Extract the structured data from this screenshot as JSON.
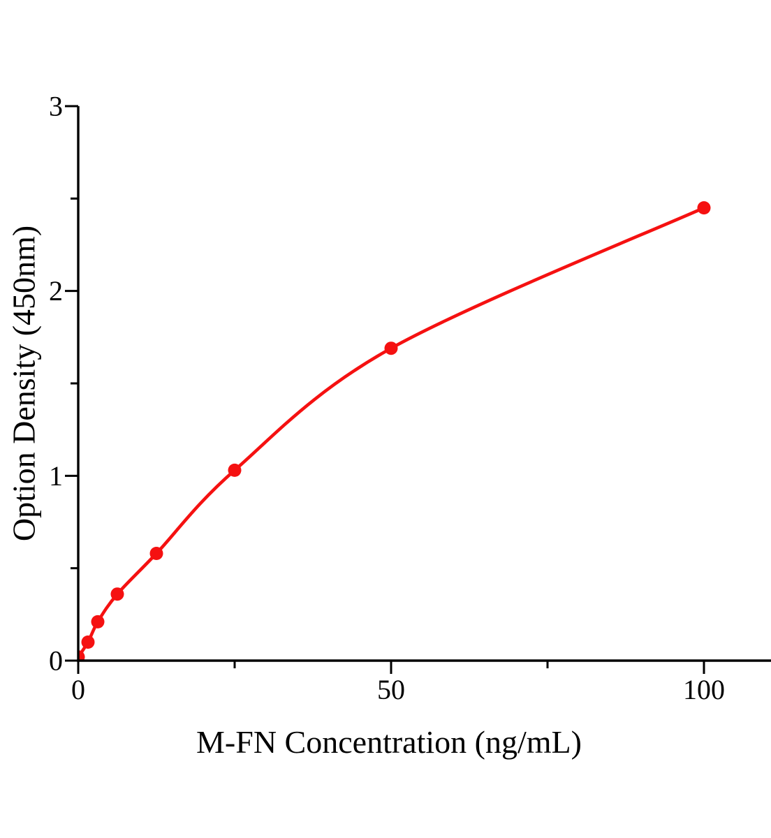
{
  "chart_data": {
    "type": "scatter",
    "mode": "markers+smooth-line",
    "title": "",
    "xlabel": "M-FN Concentration（ng/mL）",
    "ylabel": "Option Density（450nm）",
    "x": [
      0,
      1.56,
      3.12,
      6.25,
      12.5,
      25,
      50,
      100
    ],
    "y": [
      0.02,
      0.1,
      0.21,
      0.36,
      0.58,
      1.03,
      1.69,
      2.45
    ],
    "xlim": [
      0,
      110.7
    ],
    "ylim": [
      0,
      3
    ],
    "x_major_ticks": [
      0,
      50,
      100
    ],
    "x_tick_labels": [
      "0",
      "50",
      "100"
    ],
    "x_minor_ticks": [
      25,
      75
    ],
    "y_major_ticks": [
      0,
      1,
      2,
      3
    ],
    "y_tick_labels": [
      "0",
      "1",
      "2",
      "3"
    ],
    "y_minor_ticks": [
      0.5,
      1.5,
      2.5
    ],
    "grid": false,
    "legend": "none",
    "colors": {
      "line": "#f51111",
      "marker": "#f51111",
      "axis": "#000000",
      "background": "#ffffff"
    }
  }
}
